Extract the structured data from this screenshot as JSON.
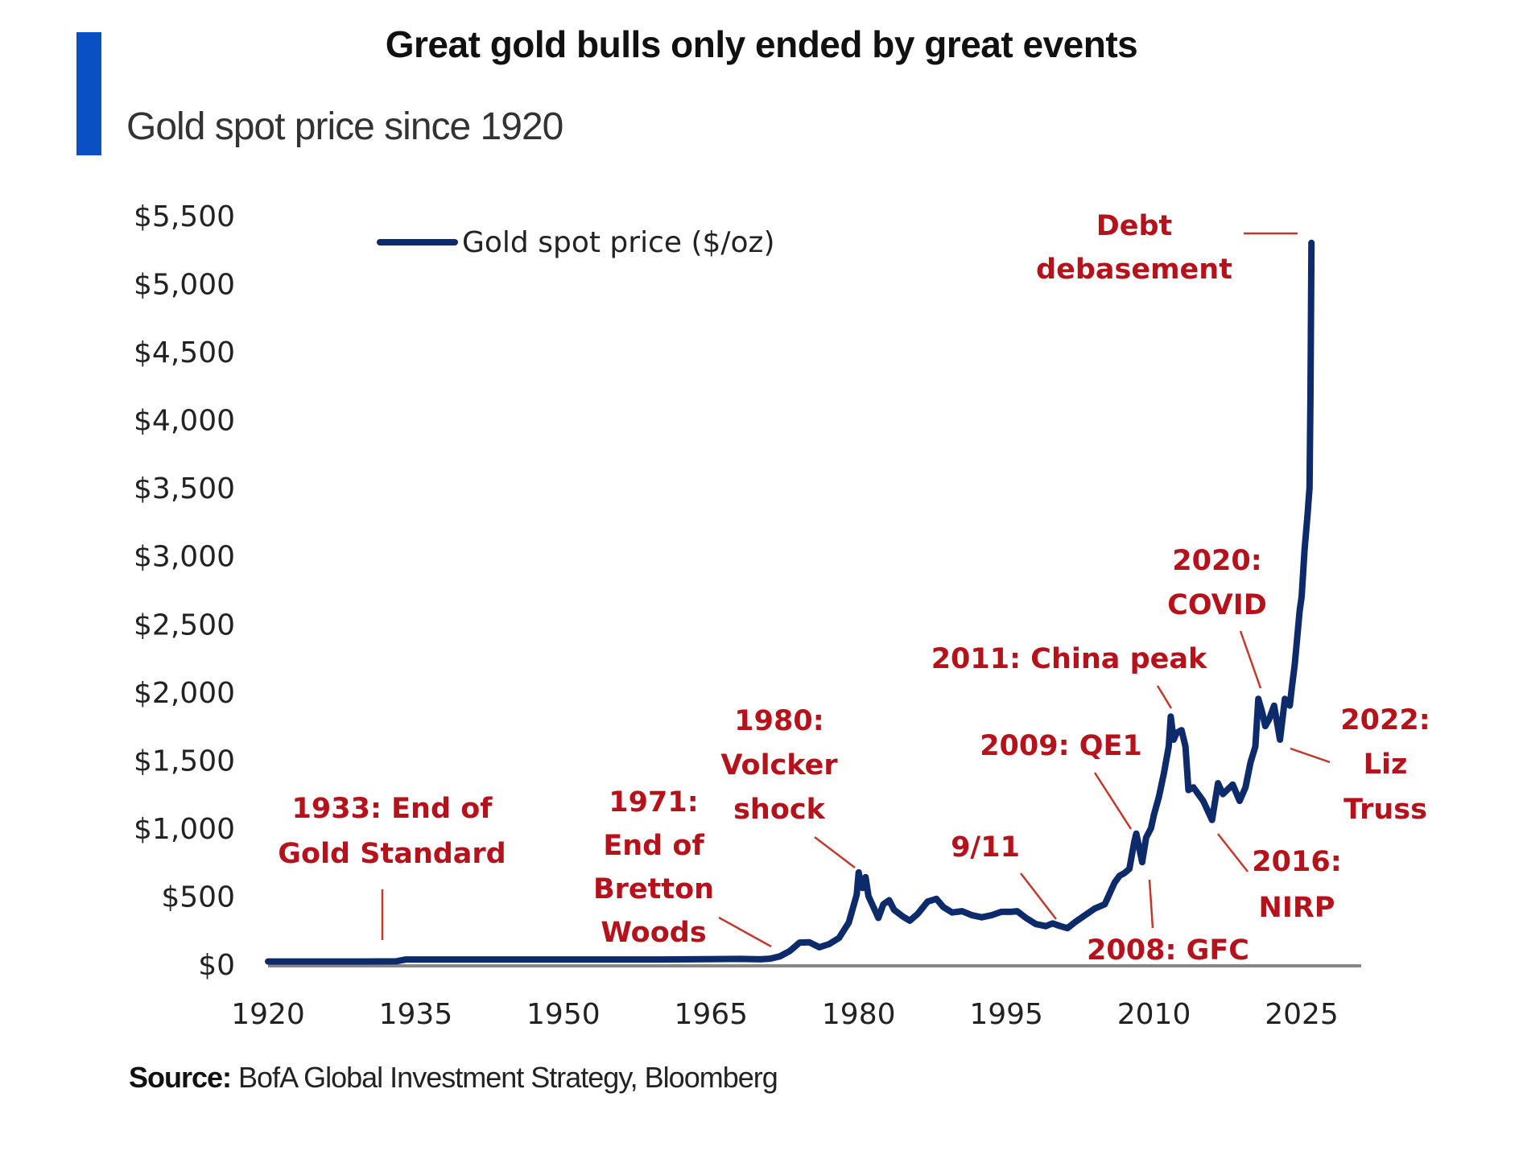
{
  "header": {
    "title": "Great gold bulls only ended by great events",
    "subtitle": "Gold spot price since 1920"
  },
  "footer": {
    "source_label": "Source:",
    "source_text": " BofA Global Investment Strategy, Bloomberg"
  },
  "colors": {
    "accent_bar": "#0a4fc4",
    "series_line": "#0d2a6b",
    "annotation": "#b5121b",
    "axis_line": "#888888"
  },
  "chart_data": {
    "type": "line",
    "title": "Gold spot price since 1920",
    "xlabel": "",
    "ylabel": "",
    "xlim": [
      1920,
      2025.5
    ],
    "ylim": [
      0,
      5500
    ],
    "grid": false,
    "legend": {
      "position": "top-left",
      "entries": [
        "Gold spot price ($/oz)"
      ]
    },
    "x_ticks": [
      1920,
      1935,
      1950,
      1965,
      1980,
      1995,
      2010,
      2025
    ],
    "x_tick_labels": [
      "1920",
      "1935",
      "1950",
      "1965",
      "1980",
      "1995",
      "2010",
      "2025"
    ],
    "y_ticks": [
      0,
      500,
      1000,
      1500,
      2000,
      2500,
      3000,
      3500,
      4000,
      4500,
      5000,
      5500
    ],
    "y_tick_labels": [
      "$0",
      "$500",
      "$1,000",
      "$1,500",
      "$2,000",
      "$2,500",
      "$3,000",
      "$3,500",
      "$4,000",
      "$4,500",
      "$5,000",
      "$5,500"
    ],
    "series": [
      {
        "name": "Gold spot price ($/oz)",
        "x": [
          1920,
          1925,
          1930,
          1933,
          1934,
          1940,
          1950,
          1960,
          1968,
          1970,
          1971,
          1972,
          1973,
          1974,
          1975,
          1976,
          1977,
          1978,
          1979,
          1979.8,
          1980.0,
          1980.1,
          1980.4,
          1980.7,
          1981.0,
          1981.5,
          1982.0,
          1982.5,
          1983.1,
          1983.6,
          1984.5,
          1985.2,
          1986.0,
          1987.0,
          1987.9,
          1988.6,
          1989.5,
          1990.5,
          1991.5,
          1992.5,
          1993.5,
          1994.5,
          1995.5,
          1996.1,
          1997.0,
          1998.0,
          1999.0,
          1999.7,
          2000.5,
          2001.2,
          2002.0,
          2003.0,
          2004.0,
          2005.0,
          2006.0,
          2006.5,
          2007.0,
          2007.5,
          2008.0,
          2008.2,
          2008.8,
          2009.2,
          2009.7,
          2010.0,
          2010.5,
          2011.0,
          2011.5,
          2011.7,
          2012.0,
          2012.3,
          2012.8,
          2013.2,
          2013.5,
          2014.0,
          2014.5,
          2015.0,
          2015.9,
          2016.5,
          2017.0,
          2018.0,
          2018.7,
          2019.3,
          2019.8,
          2020.3,
          2020.6,
          2021.0,
          2021.3,
          2021.7,
          2022.2,
          2022.8,
          2023.3,
          2023.8,
          2024.0,
          2024.3,
          2024.8,
          2025.0,
          2025.3,
          2025.6,
          2025.8,
          2025.9,
          2026.0
        ],
        "values": [
          20,
          20,
          20,
          21,
          35,
          35,
          35,
          35,
          39,
          36,
          41,
          58,
          97,
          159,
          161,
          125,
          148,
          193,
          307,
          512,
          675,
          640,
          560,
          640,
          500,
          420,
          340,
          440,
          470,
          400,
          350,
          320,
          370,
          460,
          480,
          420,
          380,
          390,
          360,
          345,
          360,
          385,
          385,
          390,
          340,
          295,
          280,
          300,
          280,
          265,
          310,
          360,
          410,
          440,
          600,
          650,
          670,
          700,
          900,
          960,
          750,
          930,
          1000,
          1100,
          1230,
          1400,
          1600,
          1820,
          1650,
          1700,
          1720,
          1600,
          1280,
          1300,
          1250,
          1200,
          1060,
          1330,
          1250,
          1320,
          1200,
          1300,
          1480,
          1600,
          1950,
          1850,
          1750,
          1800,
          1900,
          1650,
          1950,
          1900,
          2030,
          2200,
          2600,
          2700,
          3050,
          3300,
          3500,
          4200,
          5300
        ]
      }
    ],
    "annotations": [
      {
        "label_lines": [
          "1933: End of",
          "Gold Standard"
        ],
        "year": 1933,
        "value": 35
      },
      {
        "label_lines": [
          "1971:",
          "End of",
          "Bretton",
          "Woods"
        ],
        "year": 1971,
        "value": 41
      },
      {
        "label_lines": [
          "1980:",
          "Volcker",
          "shock"
        ],
        "year": 1980,
        "value": 675
      },
      {
        "label_lines": [
          "9/11"
        ],
        "year": 2001,
        "value": 265
      },
      {
        "label_lines": [
          "2009: QE1"
        ],
        "year": 2009,
        "value": 930
      },
      {
        "label_lines": [
          "2008: GFC"
        ],
        "year": 2008,
        "value": 750
      },
      {
        "label_lines": [
          "2011: China peak"
        ],
        "year": 2011,
        "value": 1820
      },
      {
        "label_lines": [
          "2016:",
          "NIRP"
        ],
        "year": 2016,
        "value": 1060
      },
      {
        "label_lines": [
          "2020:",
          "COVID"
        ],
        "year": 2020,
        "value": 1950
      },
      {
        "label_lines": [
          "2022:",
          "Liz",
          "Truss"
        ],
        "year": 2022,
        "value": 1650
      },
      {
        "label_lines": [
          "Debt",
          "debasement"
        ],
        "year": 2025,
        "value": 5300
      }
    ]
  }
}
